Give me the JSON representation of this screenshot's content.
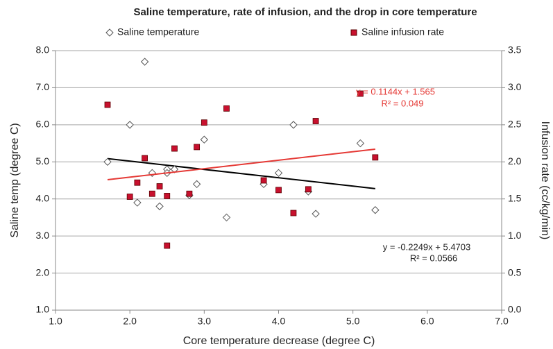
{
  "chart_data": {
    "type": "scatter",
    "title": "Saline temperature, rate of infusion, and the drop in core temperature",
    "x_label": "Core temperature decrease (degree C)",
    "y_label": "Saline temp (degree C)",
    "y2_label": "Infusion rate (cc/kg/min)",
    "xlim": [
      1,
      7
    ],
    "xticks": [
      {
        "value": 1,
        "label": "1.0"
      },
      {
        "value": 2,
        "label": "2.0"
      },
      {
        "value": 3,
        "label": "3.0"
      },
      {
        "value": 4,
        "label": "4.0"
      },
      {
        "value": 5,
        "label": "5.0"
      },
      {
        "value": 6,
        "label": "6.0"
      },
      {
        "value": 7,
        "label": "7.0"
      }
    ],
    "ylim": [
      1,
      8
    ],
    "yticks": [
      {
        "value": 1,
        "label": "1.0"
      },
      {
        "value": 2,
        "label": "2.0"
      },
      {
        "value": 3,
        "label": "3.0"
      },
      {
        "value": 4,
        "label": "4.0"
      },
      {
        "value": 5,
        "label": "5.0"
      },
      {
        "value": 6,
        "label": "6.0"
      },
      {
        "value": 7,
        "label": "7.0"
      },
      {
        "value": 8,
        "label": "8.0"
      }
    ],
    "y2lim": [
      0,
      3.5
    ],
    "y2ticks": [
      {
        "value": 0,
        "label": "0.0"
      },
      {
        "value": 0.5,
        "label": "0.5"
      },
      {
        "value": 1,
        "label": "1.0"
      },
      {
        "value": 1.5,
        "label": "1.5"
      },
      {
        "value": 2,
        "label": "2.0"
      },
      {
        "value": 2.5,
        "label": "2.5"
      },
      {
        "value": 3,
        "label": "3.0"
      },
      {
        "value": 3.5,
        "label": "3.5"
      }
    ],
    "grid": true,
    "legend": "top",
    "series": [
      {
        "name": "Saline temperature",
        "color": "#ffffff",
        "marker": "diamond",
        "axis": "y",
        "x": [
          1.7,
          2.0,
          2.1,
          2.2,
          2.3,
          2.4,
          2.5,
          2.5,
          2.6,
          2.8,
          2.9,
          3.0,
          3.3,
          3.8,
          4.0,
          4.2,
          4.4,
          4.5,
          5.1,
          5.3
        ],
        "values": [
          5.0,
          6.0,
          3.9,
          7.7,
          4.7,
          3.8,
          4.8,
          4.7,
          4.8,
          4.1,
          4.4,
          5.6,
          3.5,
          4.4,
          4.7,
          6.0,
          4.2,
          3.6,
          5.5,
          3.7
        ],
        "trendline": {
          "slope": -0.2249,
          "intercept": 5.4703,
          "color": "#000000",
          "label": "y = -0.2249x + 5.4703",
          "r2_label": "R² = 0.0566"
        }
      },
      {
        "name": "Saline infusion rate",
        "color": "#c8102e",
        "marker": "square",
        "axis": "y2",
        "x": [
          1.7,
          2.0,
          2.1,
          2.2,
          2.3,
          2.4,
          2.5,
          2.5,
          2.6,
          2.8,
          2.9,
          3.0,
          3.3,
          3.8,
          4.0,
          4.2,
          4.4,
          4.5,
          5.1,
          5.3
        ],
        "values": [
          2.77,
          1.53,
          1.72,
          2.05,
          1.57,
          1.67,
          1.54,
          0.87,
          2.18,
          1.57,
          2.2,
          2.53,
          2.72,
          1.75,
          1.62,
          1.31,
          1.63,
          2.55,
          2.92,
          2.06
        ],
        "trendline": {
          "slope": 0.1144,
          "intercept": 1.565,
          "color": "#e53935",
          "label": "y = 0.1144x + 1.565",
          "r2_label": "R² = 0.049"
        }
      }
    ]
  }
}
